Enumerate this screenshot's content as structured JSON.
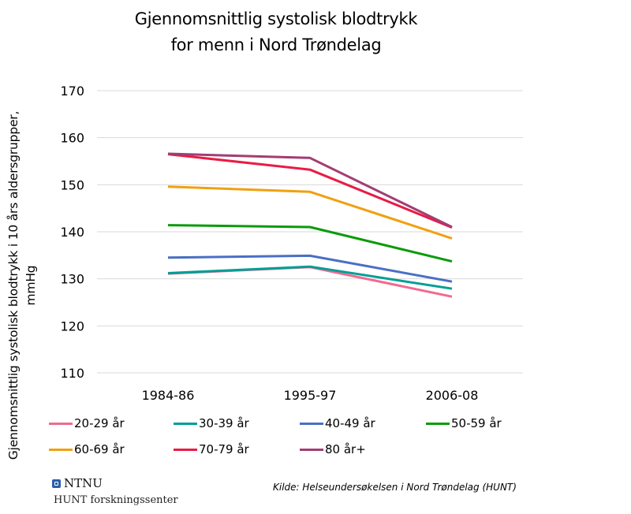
{
  "chart_data": {
    "type": "line",
    "title": "Gjennomsnittlig systolisk blodtrykk for menn i Nord Trøndelag",
    "title_lines": [
      "Gjennomsnittlig systolisk blodtrykk",
      "for menn i Nord Trøndelag"
    ],
    "xlabel": "",
    "ylabel": "Gjennomsnittlig systolisk blodtrykk i 10 års aldersgrupper, mmHg",
    "ylabel_lines": [
      "Gjennomsnittlig systolisk blodtrykk i 10 års aldersgrupper,",
      "mmHg"
    ],
    "categories": [
      "1984-86",
      "1995-97",
      "2006-08"
    ],
    "ylim": [
      110,
      170
    ],
    "yticks": [
      110,
      120,
      130,
      140,
      150,
      160,
      170
    ],
    "grid": true,
    "legend_position": "bottom",
    "series": [
      {
        "name": "20-29 år",
        "color": "#f06a8f",
        "values": [
          131.1,
          132.5,
          126.2
        ]
      },
      {
        "name": "30-39 år",
        "color": "#009e96",
        "values": [
          131.2,
          132.6,
          127.9
        ]
      },
      {
        "name": "40-49 år",
        "color": "#4a6fc4",
        "values": [
          134.5,
          134.9,
          129.4
        ]
      },
      {
        "name": "50-59 år",
        "color": "#0a9b0a",
        "values": [
          141.4,
          141.0,
          133.7
        ]
      },
      {
        "name": "60-69 år",
        "color": "#f0a010",
        "values": [
          149.6,
          148.5,
          138.6
        ]
      },
      {
        "name": "70-79 år",
        "color": "#e81c45",
        "values": [
          156.5,
          153.2,
          140.9
        ]
      },
      {
        "name": "80 år+",
        "color": "#a23d72",
        "values": [
          156.6,
          155.7,
          141.0
        ]
      }
    ]
  },
  "footer": {
    "logo_text": "NTNU",
    "org_text": "HUNT forskningssenter",
    "source": "Kilde: Helseundersøkelsen i Nord Trøndelag (HUNT)"
  },
  "legend": [
    {
      "label": "20-29 år",
      "color": "#f06a8f"
    },
    {
      "label": "30-39 år",
      "color": "#009e96"
    },
    {
      "label": "40-49 år",
      "color": "#4a6fc4"
    },
    {
      "label": "50-59 år",
      "color": "#0a9b0a"
    },
    {
      "label": "60-69 år",
      "color": "#f0a010"
    },
    {
      "label": "70-79 år",
      "color": "#e81c45"
    },
    {
      "label": "80 år+",
      "color": "#a23d72"
    }
  ]
}
